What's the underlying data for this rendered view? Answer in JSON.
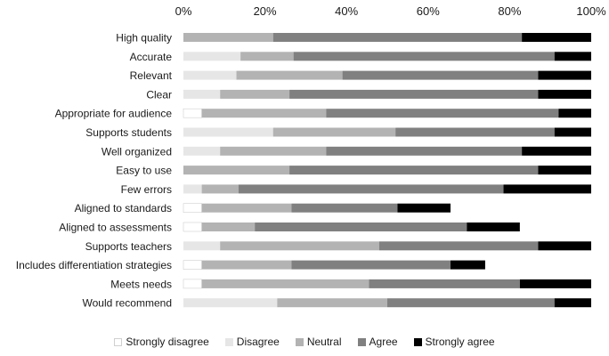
{
  "chart_data": {
    "type": "bar",
    "orientation": "horizontal",
    "stacked": true,
    "normalized": true,
    "xlim": [
      0,
      100
    ],
    "xticks": [
      "0%",
      "20%",
      "40%",
      "60%",
      "80%",
      "100%"
    ],
    "xtick_values": [
      0,
      20,
      40,
      60,
      80,
      100
    ],
    "x_axis_position": "top",
    "grid": false,
    "legend_position": "bottom",
    "categories": [
      "High quality",
      "Accurate",
      "Relevant",
      "Clear",
      "Appropriate for audience",
      "Supports students",
      "Well organized",
      "Easy to use",
      "Few errors",
      "Aligned to standards",
      "Aligned to assessments",
      "Supports teachers",
      "Includes differentiation strategies",
      "Meets needs",
      "Would recommend"
    ],
    "series": [
      {
        "name": "Strongly disagree",
        "color": "#ffffff",
        "stroke": "#d0d0d0",
        "values": [
          0,
          0,
          0,
          0,
          4.5,
          0,
          0,
          0,
          0,
          4.5,
          4.5,
          0,
          4.5,
          4.5,
          0
        ]
      },
      {
        "name": "Disagree",
        "color": "#e6e6e6",
        "values": [
          0,
          14,
          13,
          9,
          0,
          22,
          9,
          0,
          4.5,
          0,
          0,
          9,
          0,
          0,
          23
        ]
      },
      {
        "name": "Neutral",
        "color": "#b3b3b3",
        "values": [
          22,
          13,
          26,
          17,
          30.5,
          30,
          26,
          26,
          9,
          22,
          13,
          39,
          22,
          41,
          27
        ]
      },
      {
        "name": "Agree",
        "color": "#808080",
        "values": [
          61,
          64,
          48,
          61,
          57,
          39,
          48,
          61,
          65,
          26,
          52,
          39,
          39,
          37,
          41
        ]
      },
      {
        "name": "Strongly agree",
        "color": "#000000",
        "values": [
          17,
          9,
          13,
          13,
          8,
          9,
          17,
          13,
          21.5,
          13,
          13,
          13,
          8.5,
          17.5,
          9
        ]
      }
    ]
  }
}
